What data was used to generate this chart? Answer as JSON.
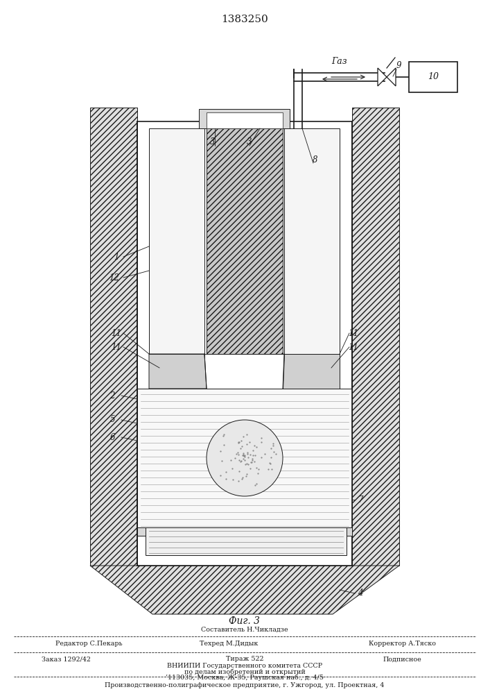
{
  "title": "1383250",
  "fig_label": "Фиг. 3",
  "gas_label": "Газ",
  "bg_color": "#ffffff",
  "line_color": "#1a1a1a",
  "footer_compositor": "Составитель Н.Чикладзе",
  "footer_editor": "Редактор С.Пекарь",
  "footer_techred": "Техред М.Дидык",
  "footer_corrector": "Корректор А.Тяско",
  "footer_order": "Заказ 1292/42",
  "footer_tirazh": "Тираж 522",
  "footer_podp": "Подписное",
  "footer_vniip1": "ВНИИПИ Государственного комитета СССР",
  "footer_vniip2": "по делам изобретений и открытий",
  "footer_vniip3": "’113035, Москва, Ж-35, Раушская наб., д. 4/5",
  "footer_last": "Производственно-полиграфическое предприятие, г. Ужгород, ул. Проектная, 4"
}
